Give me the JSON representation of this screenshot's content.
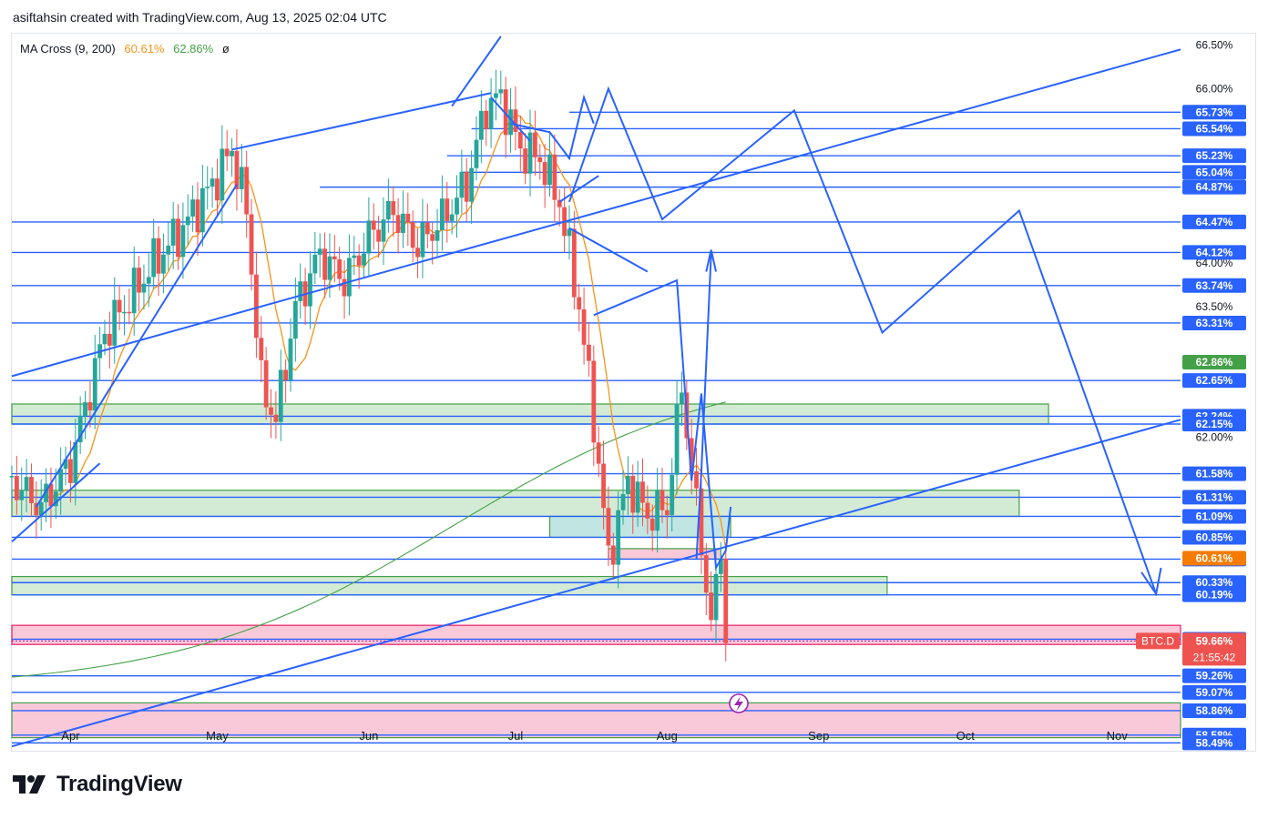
{
  "header": {
    "text": "asiftahsin created with TradingView.com, Aug 13, 2025 02:04 UTC"
  },
  "legend": {
    "name": "MA Cross (9, 200)",
    "fast_value": "60.61%",
    "slow_value": "62.86%",
    "symbol": "ø"
  },
  "footer": {
    "brand": "TradingView"
  },
  "colors": {
    "up": "#26a69a",
    "down": "#ef5350",
    "blue": "#2962ff",
    "orange": "#f7931a",
    "green": "#43a047",
    "zone_green": "#c8e6c9",
    "zone_pink": "#f8bbd0"
  },
  "chart_data": {
    "type": "candlestick",
    "symbol": "BTC.D",
    "countdown": "21:55:42",
    "x_labels": [
      "Apr",
      "May",
      "Jun",
      "Jul",
      "Aug",
      "Sep",
      "Oct",
      "Nov"
    ],
    "x_range": [
      "2025-03-20",
      "2025-11-14"
    ],
    "y_range": [
      58.4,
      66.6
    ],
    "y_tick_labels": [
      "66.50%",
      "66.00%",
      "64.00%",
      "63.50%",
      "62.00%"
    ],
    "price_labels": [
      "65.73%",
      "65.54%",
      "65.23%",
      "65.04%",
      "64.87%",
      "64.47%",
      "64.12%",
      "63.74%",
      "63.31%",
      "62.65%",
      "62.24%",
      "62.15%",
      "61.58%",
      "61.31%",
      "61.09%",
      "60.85%",
      "60.60%",
      "60.33%",
      "60.19%",
      "59.68%",
      "59.26%",
      "59.07%",
      "58.86%",
      "58.58%",
      "58.49%"
    ],
    "last_price": "59.66%",
    "ma_fast_label": "60.61%",
    "ma_slow_label": "62.86%",
    "ma_fast_name": "MA 9",
    "ma_slow_name": "MA 200"
  }
}
